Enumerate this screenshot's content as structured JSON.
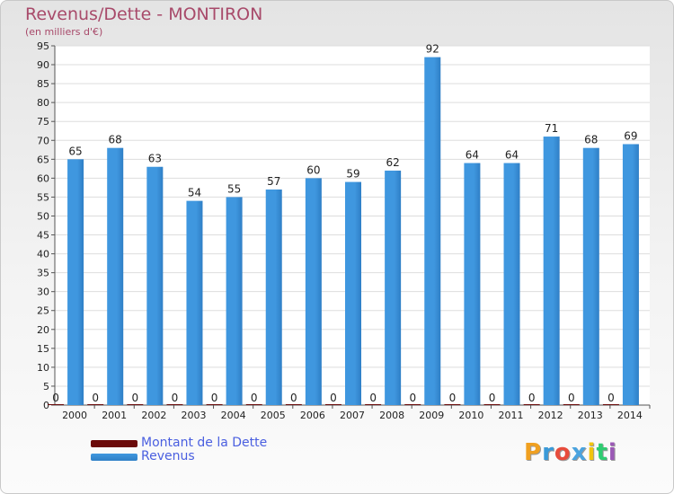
{
  "title": "Revenus/Dette - MONTIRON",
  "subtitle": "(en milliers d'€)",
  "colors": {
    "debt": "#6b0a0a",
    "revenue": "#3f97df",
    "revenue_dark": "#2f7fc6"
  },
  "chart_data": {
    "type": "bar",
    "categories": [
      "2000",
      "2001",
      "2002",
      "2003",
      "2004",
      "2005",
      "2006",
      "2007",
      "2008",
      "2009",
      "2010",
      "2011",
      "2012",
      "2013",
      "2014"
    ],
    "series": [
      {
        "name": "Montant de la Dette",
        "values": [
          0,
          0,
          0,
          0,
          0,
          0,
          0,
          0,
          0,
          0,
          0,
          0,
          0,
          0,
          0
        ]
      },
      {
        "name": "Revenus",
        "values": [
          65,
          68,
          63,
          54,
          55,
          57,
          60,
          59,
          62,
          92,
          64,
          64,
          71,
          68,
          69
        ]
      }
    ],
    "ylim": [
      0,
      95
    ],
    "yticks": [
      0,
      5,
      10,
      15,
      20,
      25,
      30,
      35,
      40,
      45,
      50,
      55,
      60,
      65,
      70,
      75,
      80,
      85,
      90,
      95
    ],
    "grid": true,
    "legend_position": "bottom-left"
  },
  "logo": {
    "letters": [
      "P",
      "r",
      "o",
      "x",
      "i",
      "t",
      "i"
    ],
    "colors": [
      "#f0a020",
      "#3a9ad9",
      "#e74c3c",
      "#4aa3df",
      "#f1c40f",
      "#2ecc71",
      "#9b59b6"
    ]
  }
}
